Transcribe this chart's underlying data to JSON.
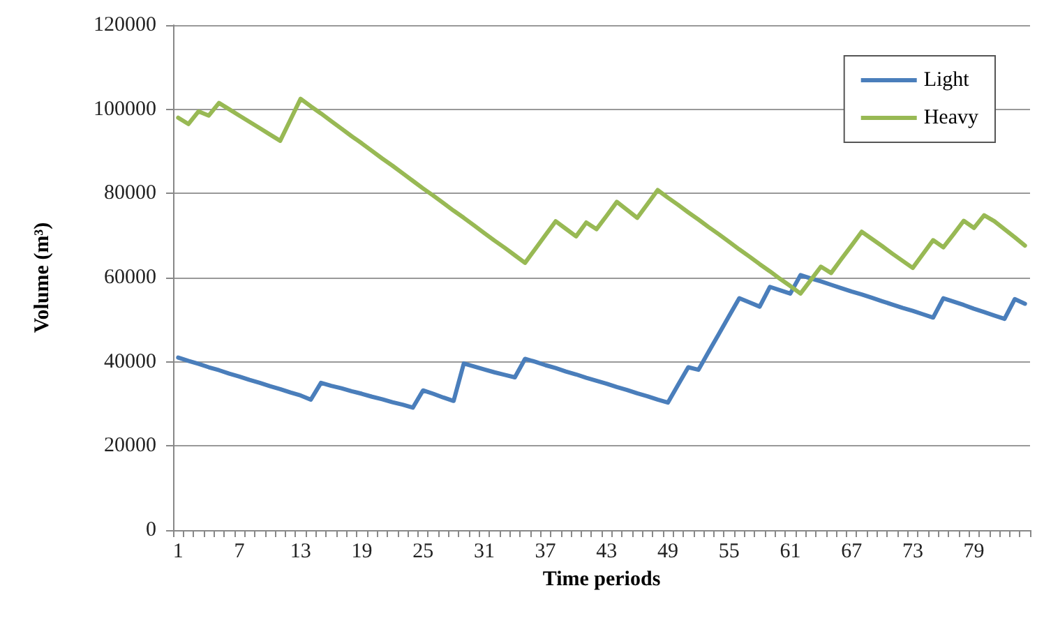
{
  "chart_data": {
    "type": "line",
    "xlabel": "Time periods",
    "ylabel": "Volume (m³)",
    "categories": [
      "1",
      null,
      null,
      null,
      null,
      null,
      "7",
      null,
      null,
      null,
      null,
      null,
      "13",
      null,
      null,
      null,
      null,
      null,
      "19",
      null,
      null,
      null,
      null,
      null,
      "25",
      null,
      null,
      null,
      null,
      null,
      "31",
      null,
      null,
      null,
      null,
      null,
      "37",
      null,
      null,
      null,
      null,
      null,
      "43",
      null,
      null,
      null,
      null,
      null,
      "49",
      null,
      null,
      null,
      null,
      null,
      "55",
      null,
      null,
      null,
      null,
      null,
      "61",
      null,
      null,
      null,
      null,
      null,
      "67",
      null,
      null,
      null,
      null,
      null,
      "73",
      null,
      null,
      null,
      null,
      null,
      "79",
      null,
      null,
      null,
      null,
      null
    ],
    "series": [
      {
        "name": "Light",
        "color": "#4a7ebb",
        "values": [
          41000,
          40200,
          39500,
          38700,
          38000,
          37200,
          36500,
          35700,
          35000,
          34200,
          33500,
          32700,
          32000,
          31000,
          35000,
          34300,
          33700,
          33000,
          32400,
          31700,
          31100,
          30400,
          29800,
          29100,
          33200,
          32400,
          31500,
          30700,
          39600,
          38900,
          38200,
          37500,
          36900,
          36300,
          40700,
          40000,
          39200,
          38500,
          37700,
          37000,
          36200,
          35500,
          34800,
          34000,
          33300,
          32500,
          31800,
          31000,
          30300,
          34500,
          38700,
          38100,
          42400,
          46600,
          50900,
          55100,
          54100,
          53100,
          57800,
          57000,
          56200,
          60600,
          59800,
          59100,
          58300,
          57500,
          56700,
          56000,
          55200,
          54400,
          53600,
          52800,
          52100,
          51300,
          50500,
          55100,
          54300,
          53500,
          52600,
          51800,
          51000,
          50200,
          54900,
          53800
        ]
      },
      {
        "name": "Heavy",
        "color": "#98b954",
        "values": [
          98000,
          96500,
          99500,
          98500,
          101500,
          100000,
          98500,
          97000,
          95500,
          94000,
          92500,
          97500,
          102500,
          100700,
          99000,
          97200,
          95400,
          93600,
          91900,
          90100,
          88300,
          86600,
          84800,
          83000,
          81200,
          79500,
          77700,
          75900,
          74200,
          72400,
          70600,
          68800,
          67100,
          65300,
          63500,
          66800,
          70100,
          73400,
          71600,
          69800,
          73100,
          71500,
          74700,
          78000,
          76100,
          74200,
          77500,
          80800,
          79000,
          77300,
          75500,
          73800,
          72000,
          70300,
          68500,
          66700,
          65000,
          63200,
          61500,
          59700,
          58000,
          56200,
          59400,
          62600,
          61100,
          64400,
          67600,
          70900,
          69200,
          67500,
          65700,
          64000,
          62300,
          65600,
          68900,
          67200,
          70300,
          73500,
          71800,
          74800,
          73400,
          71500,
          69600,
          67600
        ]
      }
    ],
    "ylim": [
      0,
      120000
    ],
    "yticks": [
      0,
      20000,
      40000,
      60000,
      80000,
      100000,
      120000
    ],
    "grid": "y",
    "legend": "top right",
    "marker": "none",
    "line_style": "solid"
  }
}
